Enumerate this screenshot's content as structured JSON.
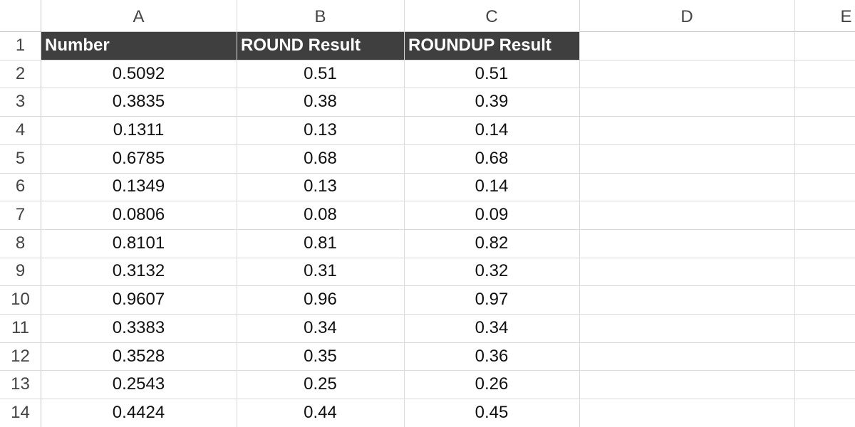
{
  "column_headers": [
    "A",
    "B",
    "C",
    "D",
    "E"
  ],
  "row_headers": [
    "1",
    "2",
    "3",
    "4",
    "5",
    "6",
    "7",
    "8",
    "9",
    "10",
    "11",
    "12",
    "13",
    "14"
  ],
  "table": {
    "header": [
      "Number",
      "ROUND Result",
      "ROUNDUP Result"
    ],
    "rows": [
      [
        "0.5092",
        "0.51",
        "0.51"
      ],
      [
        "0.3835",
        "0.38",
        "0.39"
      ],
      [
        "0.1311",
        "0.13",
        "0.14"
      ],
      [
        "0.6785",
        "0.68",
        "0.68"
      ],
      [
        "0.1349",
        "0.13",
        "0.14"
      ],
      [
        "0.0806",
        "0.08",
        "0.09"
      ],
      [
        "0.8101",
        "0.81",
        "0.82"
      ],
      [
        "0.3132",
        "0.31",
        "0.32"
      ],
      [
        "0.9607",
        "0.96",
        "0.97"
      ],
      [
        "0.3383",
        "0.34",
        "0.34"
      ],
      [
        "0.3528",
        "0.35",
        "0.36"
      ],
      [
        "0.2543",
        "0.25",
        "0.26"
      ],
      [
        "0.4424",
        "0.44",
        "0.45"
      ]
    ]
  }
}
